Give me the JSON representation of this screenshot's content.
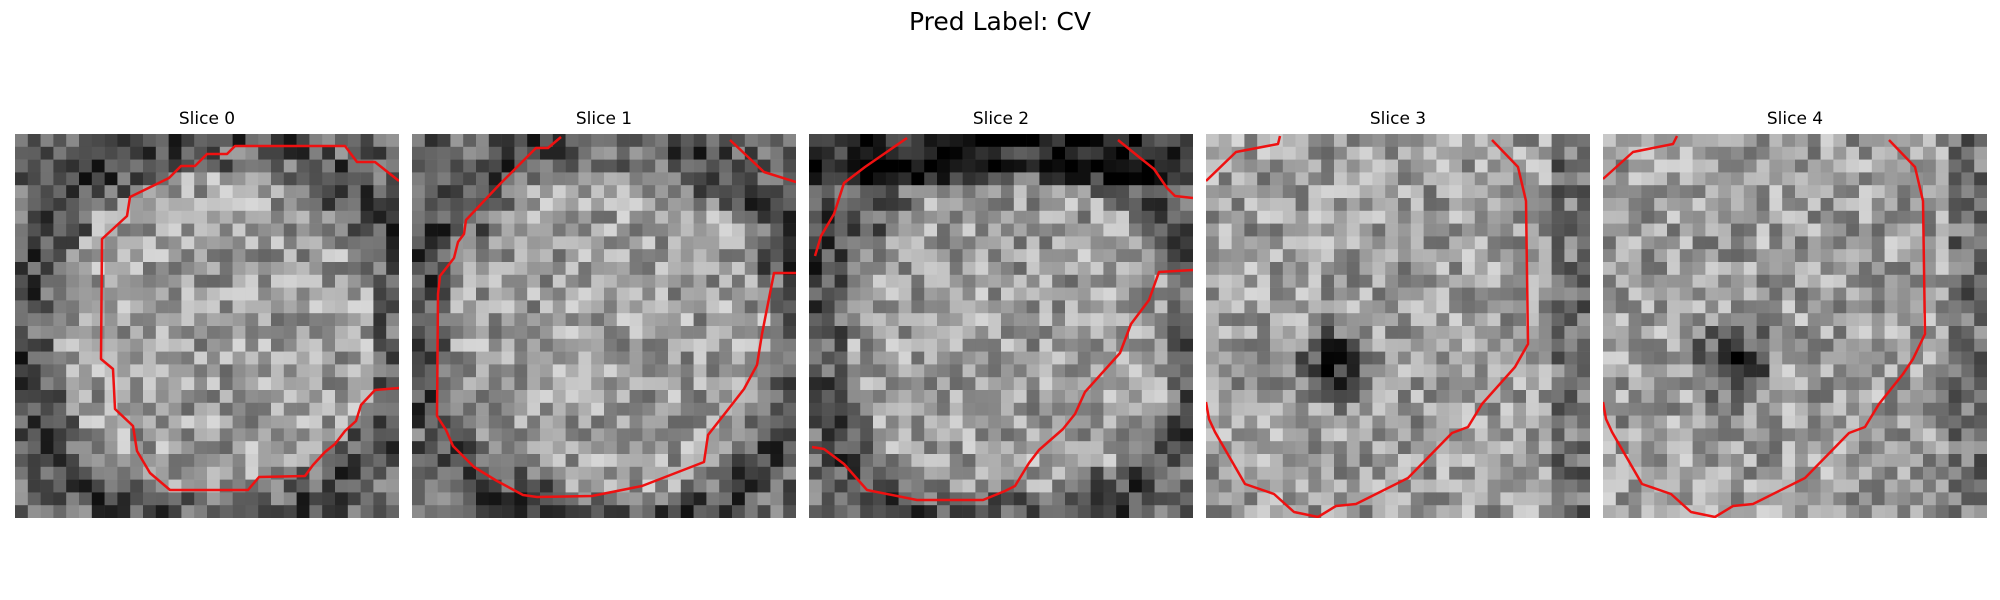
{
  "figure": {
    "suptitle": "Pred Label: CV"
  },
  "panels": [
    {
      "title": "Slice 0"
    },
    {
      "title": "Slice 1"
    },
    {
      "title": "Slice 2"
    },
    {
      "title": "Slice 3"
    },
    {
      "title": "Slice 4"
    }
  ],
  "contour_color": "#ee1111",
  "colormap": "gray"
}
